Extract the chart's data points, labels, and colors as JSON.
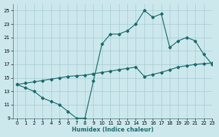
{
  "xlabel": "Humidex (Indice chaleur)",
  "bg_color": "#cce8ed",
  "grid_color": "#aacdd4",
  "line_color": "#1a6b6b",
  "upper_x": [
    0,
    1,
    2,
    3,
    4,
    5,
    6,
    7,
    8,
    9,
    10,
    11,
    12,
    13,
    14,
    15,
    16,
    17,
    18,
    19,
    20,
    21,
    22,
    23
  ],
  "upper_y": [
    14,
    13.5,
    13.0,
    12.0,
    11.5,
    11.0,
    10.0,
    9.0,
    9.0,
    14.5,
    20.0,
    21.5,
    21.5,
    22.0,
    23.0,
    25.0,
    24.0,
    24.5,
    19.5,
    20.5,
    21.0,
    20.5,
    18.5,
    17.0
  ],
  "lower_x": [
    0,
    1,
    2,
    3,
    4,
    5,
    6,
    7,
    8,
    9,
    10,
    11,
    12,
    13,
    14,
    15,
    16,
    17,
    18,
    19,
    20,
    21,
    22,
    23
  ],
  "lower_y": [
    14.0,
    14.2,
    14.4,
    14.6,
    14.8,
    15.0,
    15.2,
    15.3,
    15.4,
    15.6,
    15.8,
    16.0,
    16.2,
    16.4,
    16.6,
    15.2,
    15.5,
    15.8,
    16.2,
    16.6,
    16.8,
    17.0,
    17.1,
    17.2
  ],
  "ylim": [
    9,
    26
  ],
  "xlim": [
    -0.5,
    23
  ],
  "yticks": [
    9,
    11,
    13,
    15,
    17,
    19,
    21,
    23,
    25
  ],
  "xticks": [
    0,
    1,
    2,
    3,
    4,
    5,
    6,
    7,
    8,
    9,
    10,
    11,
    12,
    13,
    14,
    15,
    16,
    17,
    18,
    19,
    20,
    21,
    22,
    23
  ]
}
